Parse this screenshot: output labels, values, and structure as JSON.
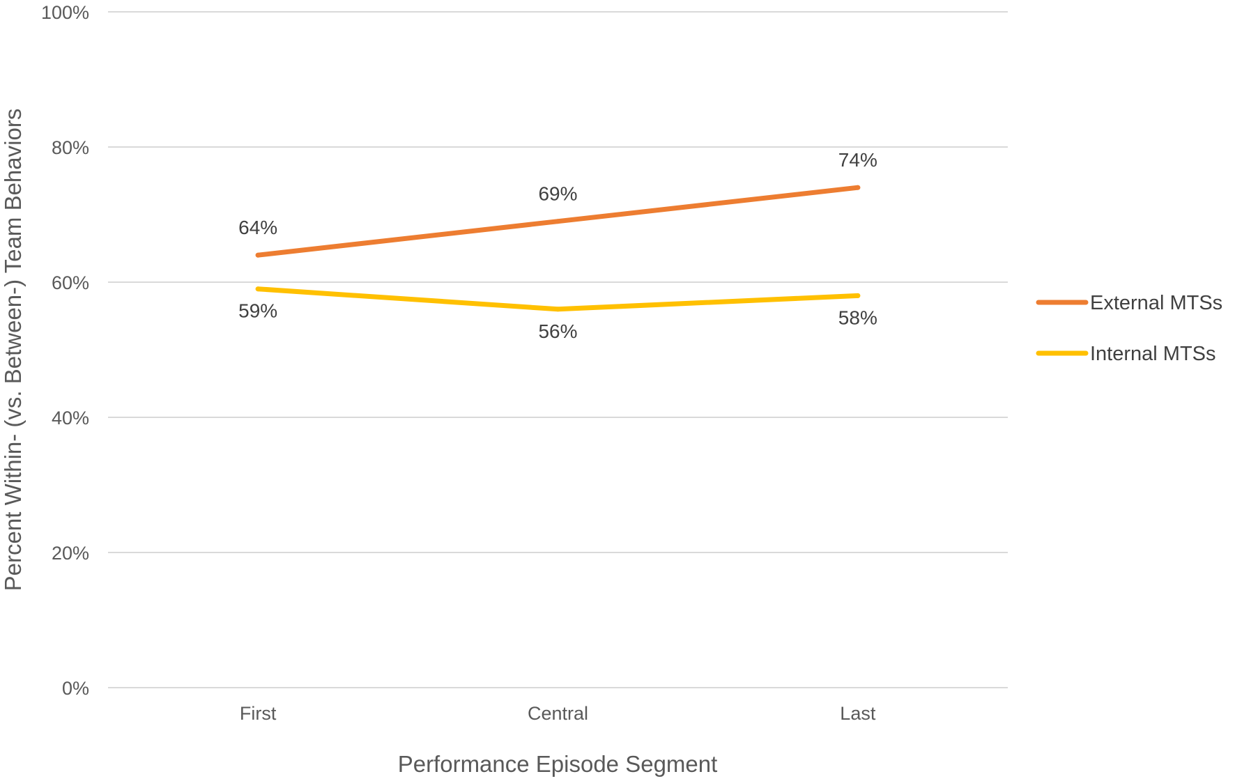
{
  "chart_data": {
    "type": "line",
    "title": "",
    "xlabel": "Performance Episode Segment",
    "ylabel": "Percent Within- (vs. Between-) Team Behaviors",
    "categories": [
      "First",
      "Central",
      "Last"
    ],
    "ylim": [
      0,
      100
    ],
    "yticks": [
      0,
      20,
      40,
      60,
      80,
      100
    ],
    "ytick_labels": [
      "0%",
      "20%",
      "40%",
      "60%",
      "80%",
      "100%"
    ],
    "grid": true,
    "legend_position": "right",
    "series": [
      {
        "name": "External MTSs",
        "color": "#ED7D31",
        "values": [
          64,
          69,
          74
        ],
        "labels": [
          "64%",
          "69%",
          "74%"
        ],
        "label_position": "above"
      },
      {
        "name": "Internal MTSs",
        "color": "#FFC000",
        "values": [
          59,
          56,
          58
        ],
        "labels": [
          "59%",
          "56%",
          "58%"
        ],
        "label_position": "below"
      }
    ]
  }
}
